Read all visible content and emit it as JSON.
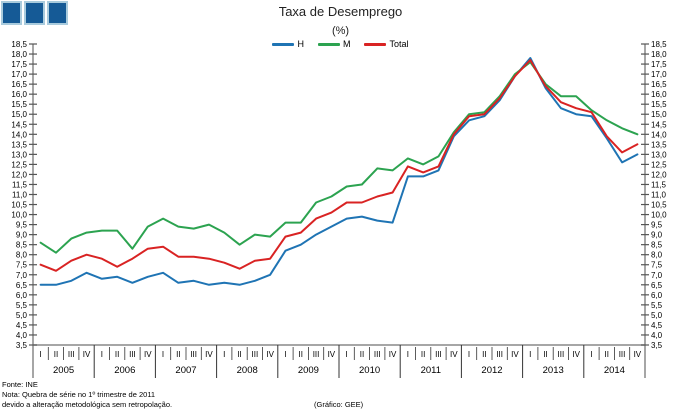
{
  "logo": {
    "square_count": 3,
    "fill": "#155A96",
    "border": "#A9CBDD"
  },
  "header": {
    "title": "Taxa de Desemprego",
    "subtitle": "(%)"
  },
  "chart_data": {
    "type": "line",
    "title": "Taxa de Desemprego",
    "subtitle": "(%)",
    "xlabel": "",
    "ylabel": "",
    "ylim": [
      3.5,
      18.5
    ],
    "ytick_step": 0.5,
    "grid": false,
    "legend_position": "top-center",
    "axis_color": "#888888",
    "tick_color": "#555555",
    "separator_color": "#333333",
    "years": [
      "2005",
      "2006",
      "2007",
      "2008",
      "2009",
      "2010",
      "2011",
      "2012",
      "2013",
      "2014"
    ],
    "quarter_labels": [
      "I",
      "II",
      "III",
      "IV"
    ],
    "series": [
      {
        "name": "H",
        "color": "#1F74B4",
        "values": [
          6.5,
          6.5,
          6.7,
          7.1,
          6.8,
          6.9,
          6.6,
          6.9,
          7.1,
          6.6,
          6.7,
          6.5,
          6.6,
          6.5,
          6.7,
          7.0,
          8.2,
          8.5,
          9.0,
          9.4,
          9.8,
          9.9,
          9.7,
          9.6,
          11.9,
          11.9,
          12.2,
          13.9,
          14.7,
          14.9,
          15.7,
          16.9,
          17.8,
          16.3,
          15.3,
          15.0,
          14.9,
          13.8,
          12.6,
          13.0
        ]
      },
      {
        "name": "M",
        "color": "#2CA350",
        "values": [
          8.6,
          8.1,
          8.8,
          9.1,
          9.2,
          9.2,
          8.3,
          9.4,
          9.8,
          9.4,
          9.3,
          9.5,
          9.1,
          8.5,
          9.0,
          8.9,
          9.6,
          9.6,
          10.6,
          10.9,
          11.4,
          11.5,
          12.3,
          12.2,
          12.8,
          12.5,
          12.9,
          14.1,
          15.0,
          15.1,
          15.9,
          17.0,
          17.6,
          16.5,
          15.9,
          15.9,
          15.2,
          14.7,
          14.3,
          14.0
        ]
      },
      {
        "name": "Total",
        "color": "#D92323",
        "values": [
          7.5,
          7.2,
          7.7,
          8.0,
          7.8,
          7.4,
          7.8,
          8.3,
          8.4,
          7.9,
          7.9,
          7.8,
          7.6,
          7.3,
          7.7,
          7.8,
          8.9,
          9.1,
          9.8,
          10.1,
          10.6,
          10.6,
          10.9,
          11.1,
          12.4,
          12.1,
          12.4,
          14.0,
          14.9,
          15.0,
          15.8,
          16.9,
          17.7,
          16.4,
          15.6,
          15.3,
          15.1,
          13.9,
          13.1,
          13.5
        ]
      }
    ]
  },
  "footer": {
    "fonte": "Fonte: INE",
    "nota_line1": "Nota: Quebra de série no 1º trimestre de 2011",
    "nota_line2": "devido a alteração metodológica sem retropolação.",
    "credit": "(Gráfico: GEE)"
  }
}
